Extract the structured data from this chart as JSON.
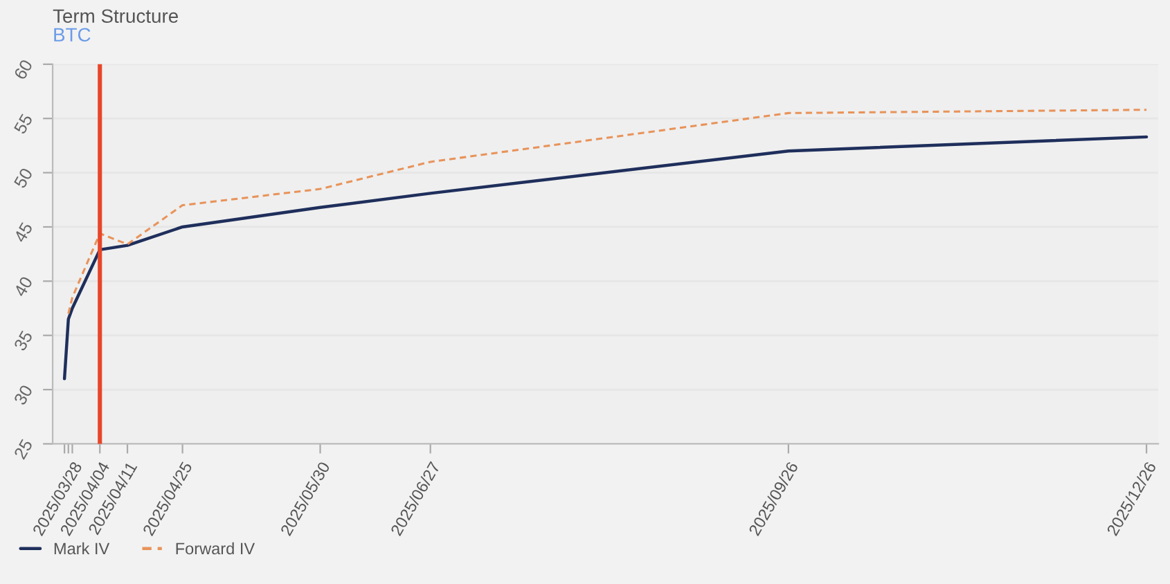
{
  "chart_data": {
    "type": "line",
    "title": "Term Structure",
    "subtitle": "BTC",
    "x": [
      "2025-03-26",
      "2025-03-27",
      "2025-03-28",
      "2025-04-04",
      "2025-04-11",
      "2025-04-25",
      "2025-05-30",
      "2025-06-27",
      "2025-09-26",
      "2025-12-26"
    ],
    "series": [
      {
        "name": "Mark IV",
        "color": "#1f2f5c",
        "line_style": "solid",
        "values": [
          31.0,
          36.5,
          37.5,
          42.9,
          43.3,
          45.0,
          46.8,
          48.1,
          52.0,
          53.3
        ]
      },
      {
        "name": "Forward IV",
        "color": "#e8935a",
        "line_style": "dashed",
        "values": [
          null,
          37.0,
          38.5,
          44.4,
          43.4,
          47.0,
          48.5,
          51.0,
          55.5,
          55.8
        ]
      }
    ],
    "xlim": [
      "2025-03-23",
      "2025-12-29"
    ],
    "xticks": [
      {
        "value": "2025-03-26",
        "label": null
      },
      {
        "value": "2025-03-27",
        "label": null
      },
      {
        "value": "2025-03-28",
        "label": "2025/03/28"
      },
      {
        "value": "2025-04-04",
        "label": "2025/04/04"
      },
      {
        "value": "2025-04-11",
        "label": "2025/04/11"
      },
      {
        "value": "2025-04-25",
        "label": "2025/04/25"
      },
      {
        "value": "2025-05-30",
        "label": "2025/05/30"
      },
      {
        "value": "2025-06-27",
        "label": "2025/06/27"
      },
      {
        "value": "2025-09-26",
        "label": "2025/09/26"
      },
      {
        "value": "2025-12-26",
        "label": "2025/12/26"
      }
    ],
    "ylim": [
      25,
      60
    ],
    "yticks": [
      25,
      30,
      35,
      40,
      45,
      50,
      55,
      60
    ],
    "ref_lines": [
      {
        "axis": "x",
        "value": "2025-04-04",
        "label": null,
        "color": "#e8462a"
      }
    ],
    "grid": "y",
    "legend": "bottom left",
    "marker": "none"
  }
}
